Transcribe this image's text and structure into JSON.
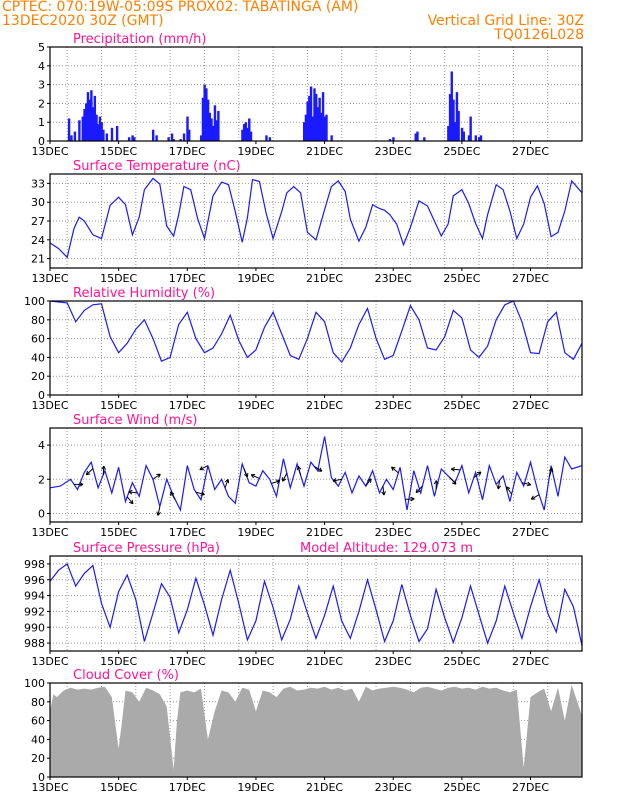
{
  "header": {
    "line1_left": "CPTEC:    070:19W-05:09S   PROX02: TABATINGA (AM)",
    "line2_left": "13DEC2020 30Z (GMT)",
    "line2_right": "Vertical Grid Line: 30Z",
    "line3_right": "TQ0126L028"
  },
  "colors": {
    "header": "#ff7f00",
    "title": "#ff1493",
    "line": "#1a1aff",
    "cloud": "#aaaaaa"
  },
  "chart_data": [
    {
      "type": "bar",
      "title": "Precipitation  (mm/h)",
      "ylim": [
        0,
        5
      ],
      "yticks": [
        "0",
        "1",
        "2",
        "3",
        "4",
        "5"
      ],
      "xticks": [
        "13DEC",
        "15DEC",
        "17DEC",
        "19DEC",
        "21DEC",
        "23DEC",
        "25DEC",
        "27DEC"
      ],
      "x_days": [
        0,
        15.5
      ],
      "x": [
        0.55,
        0.62,
        0.72,
        0.85,
        0.95,
        1.0,
        1.05,
        1.1,
        1.15,
        1.2,
        1.25,
        1.3,
        1.35,
        1.4,
        1.45,
        1.5,
        1.55,
        1.65,
        1.8,
        1.95,
        2.3,
        2.4,
        2.45,
        3.0,
        3.1,
        3.45,
        3.55,
        3.6,
        3.8,
        3.9,
        4.0,
        4.05,
        4.4,
        4.45,
        4.5,
        4.55,
        4.6,
        4.65,
        4.7,
        4.75,
        4.8,
        4.85,
        4.9,
        5.6,
        5.65,
        5.7,
        5.75,
        5.8,
        5.85,
        6.3,
        6.4,
        7.4,
        7.45,
        7.5,
        7.55,
        7.6,
        7.65,
        7.7,
        7.75,
        7.8,
        7.85,
        7.9,
        7.95,
        8.0,
        8.05,
        8.2,
        9.9,
        10.0,
        10.65,
        10.7,
        10.9,
        11.6,
        11.65,
        11.7,
        11.75,
        11.8,
        11.85,
        11.9,
        12.0,
        12.05,
        12.2,
        12.25,
        12.4,
        12.5,
        12.55
      ],
      "values": [
        1.2,
        0.3,
        0.5,
        1.1,
        1.3,
        1.7,
        2.0,
        2.6,
        2.2,
        2.7,
        1.8,
        2.4,
        1.4,
        0.9,
        1.3,
        1.0,
        0.6,
        0.4,
        0.7,
        0.8,
        0.2,
        0.3,
        0.2,
        0.6,
        0.3,
        0.2,
        0.4,
        0.1,
        0.1,
        0.4,
        1.3,
        0.6,
        0.3,
        2.3,
        3.0,
        2.8,
        2.2,
        1.5,
        1.2,
        0.8,
        1.9,
        1.1,
        1.6,
        0.6,
        0.9,
        1.0,
        0.7,
        1.2,
        0.5,
        0.3,
        0.2,
        1.0,
        1.4,
        2.1,
        2.4,
        2.9,
        1.3,
        2.8,
        2.5,
        1.8,
        2.3,
        1.5,
        2.6,
        1.3,
        1.4,
        0.3,
        0.1,
        0.2,
        0.4,
        0.5,
        0.2,
        0.8,
        2.5,
        3.7,
        2.2,
        1.0,
        2.6,
        1.6,
        0.7,
        0.5,
        0.3,
        1.3,
        0.3,
        0.2,
        0.3
      ]
    },
    {
      "type": "line",
      "title": "Surface Temperature (nC)",
      "ylim": [
        19.5,
        34.5
      ],
      "yticks": [
        "21",
        "24",
        "27",
        "30",
        "33"
      ],
      "xticks": [
        "13DEC",
        "15DEC",
        "17DEC",
        "19DEC",
        "21DEC",
        "23DEC",
        "25DEC",
        "27DEC"
      ],
      "x_days": [
        0,
        15.5
      ],
      "x": [
        0,
        0.25,
        0.5,
        0.7,
        0.85,
        1.0,
        1.25,
        1.5,
        1.75,
        2.0,
        2.2,
        2.4,
        2.6,
        2.75,
        3.0,
        3.2,
        3.4,
        3.6,
        3.75,
        3.9,
        4.1,
        4.3,
        4.5,
        4.75,
        5.0,
        5.2,
        5.4,
        5.6,
        5.75,
        5.9,
        6.1,
        6.3,
        6.5,
        6.75,
        6.9,
        7.1,
        7.3,
        7.5,
        7.75,
        8.0,
        8.2,
        8.4,
        8.6,
        8.75,
        9.0,
        9.2,
        9.4,
        9.6,
        9.75,
        9.9,
        10.1,
        10.3,
        10.5,
        10.75,
        11.0,
        11.2,
        11.4,
        11.6,
        11.75,
        12.0,
        12.2,
        12.4,
        12.6,
        12.75,
        13.0,
        13.2,
        13.4,
        13.6,
        13.8,
        14.0,
        14.2,
        14.4,
        14.6,
        14.8,
        15.0,
        15.2,
        15.5
      ],
      "values": [
        23.5,
        22.6,
        21.2,
        25.8,
        27.6,
        27.0,
        24.8,
        24.2,
        29.5,
        30.8,
        29.6,
        24.8,
        27.6,
        32.0,
        33.8,
        32.9,
        26.2,
        24.6,
        28.0,
        32.5,
        32.0,
        27.4,
        24.2,
        31.0,
        33.2,
        32.8,
        28.5,
        23.6,
        27.5,
        33.6,
        33.3,
        28.2,
        24.2,
        28.5,
        31.5,
        32.5,
        31.5,
        25.2,
        24.0,
        28.8,
        32.5,
        33.4,
        31.7,
        27.3,
        23.8,
        26.0,
        29.6,
        29.0,
        28.7,
        28.0,
        26.5,
        23.2,
        26.0,
        30.2,
        29.4,
        27.0,
        24.6,
        26.5,
        31.0,
        32.0,
        29.8,
        26.6,
        24.2,
        28.0,
        32.8,
        32.0,
        28.6,
        24.2,
        26.5,
        30.8,
        32.6,
        29.8,
        24.5,
        25.2,
        28.6,
        33.4,
        31.5
      ]
    },
    {
      "type": "line",
      "title": "Relative Humidity (%)",
      "ylim": [
        0,
        100
      ],
      "yticks": [
        "0",
        "20",
        "40",
        "60",
        "80",
        "100"
      ],
      "xticks": [
        "13DEC",
        "15DEC",
        "17DEC",
        "19DEC",
        "21DEC",
        "23DEC",
        "25DEC",
        "27DEC"
      ],
      "x_days": [
        0,
        15.5
      ],
      "x": [
        0,
        0.5,
        0.75,
        1.0,
        1.25,
        1.5,
        1.75,
        2.0,
        2.25,
        2.5,
        2.75,
        3.0,
        3.25,
        3.5,
        3.75,
        4.0,
        4.25,
        4.5,
        4.75,
        5.0,
        5.25,
        5.5,
        5.75,
        6.0,
        6.25,
        6.5,
        6.75,
        7.0,
        7.25,
        7.5,
        7.75,
        8.0,
        8.25,
        8.5,
        8.75,
        9.0,
        9.25,
        9.5,
        9.75,
        10.0,
        10.25,
        10.5,
        10.75,
        11.0,
        11.25,
        11.5,
        11.75,
        12.0,
        12.25,
        12.5,
        12.75,
        13.0,
        13.25,
        13.5,
        13.75,
        14.0,
        14.25,
        14.5,
        14.75,
        15.0,
        15.25,
        15.5
      ],
      "values": [
        100,
        98,
        78,
        90,
        96,
        97,
        62,
        45,
        55,
        70,
        80,
        60,
        36,
        40,
        75,
        88,
        60,
        45,
        50,
        65,
        85,
        58,
        40,
        48,
        72,
        88,
        65,
        42,
        38,
        60,
        88,
        78,
        45,
        35,
        50,
        75,
        92,
        60,
        38,
        42,
        68,
        95,
        80,
        50,
        48,
        62,
        90,
        82,
        48,
        40,
        52,
        80,
        96,
        100,
        78,
        45,
        44,
        78,
        88,
        45,
        38,
        55
      ]
    },
    {
      "type": "line",
      "title": "Surface Wind (m/s)",
      "ylim": [
        -0.5,
        5
      ],
      "yticks": [
        "0",
        "2",
        "4"
      ],
      "xticks": [
        "13DEC",
        "15DEC",
        "17DEC",
        "19DEC",
        "21DEC",
        "23DEC",
        "25DEC",
        "27DEC"
      ],
      "x_days": [
        0,
        15.5
      ],
      "x": [
        0,
        0.3,
        0.6,
        0.8,
        1.0,
        1.2,
        1.4,
        1.6,
        1.8,
        2.0,
        2.2,
        2.4,
        2.6,
        2.8,
        3.0,
        3.2,
        3.4,
        3.6,
        3.8,
        4.0,
        4.2,
        4.4,
        4.6,
        4.8,
        5.0,
        5.2,
        5.4,
        5.6,
        5.8,
        6.0,
        6.2,
        6.4,
        6.6,
        6.8,
        7.0,
        7.2,
        7.4,
        7.6,
        7.8,
        8.0,
        8.2,
        8.4,
        8.6,
        8.8,
        9.0,
        9.2,
        9.4,
        9.6,
        9.8,
        10.0,
        10.2,
        10.4,
        10.6,
        10.8,
        11.0,
        11.2,
        11.4,
        11.6,
        11.8,
        12.0,
        12.2,
        12.4,
        12.6,
        12.8,
        13.0,
        13.2,
        13.4,
        13.6,
        13.8,
        14.0,
        14.2,
        14.4,
        14.6,
        14.8,
        15.0,
        15.2,
        15.5
      ],
      "values": [
        1.5,
        1.6,
        2.0,
        1.4,
        2.4,
        3.0,
        1.5,
        2.5,
        1.2,
        2.7,
        0.7,
        1.8,
        1.0,
        2.8,
        2.0,
        0.4,
        2.0,
        1.0,
        0.2,
        2.8,
        1.4,
        0.8,
        2.8,
        1.4,
        2.0,
        1.0,
        0.6,
        2.9,
        1.8,
        1.6,
        2.5,
        2.0,
        1.0,
        3.2,
        1.5,
        2.9,
        1.6,
        3.0,
        2.5,
        4.5,
        2.1,
        1.6,
        2.4,
        1.2,
        2.2,
        1.6,
        2.5,
        1.2,
        2.0,
        1.4,
        2.7,
        0.2,
        2.5,
        1.2,
        2.8,
        1.0,
        2.6,
        2.2,
        1.8,
        2.8,
        1.2,
        2.4,
        0.8,
        2.8,
        1.7,
        2.2,
        0.7,
        2.4,
        1.6,
        3.0,
        1.4,
        0.2,
        2.8,
        1.0,
        3.3,
        2.6,
        2.8
      ],
      "arrows_x": [
        0.7,
        1.25,
        1.55,
        2.25,
        2.55,
        3.0,
        3.2,
        3.65,
        4.25,
        4.6,
        5.1,
        5.65,
        6.1,
        6.45,
        6.9,
        7.3,
        7.7,
        8.5,
        9.2,
        9.7,
        10.15,
        10.35,
        10.85,
        11.25,
        11.65,
        11.95,
        12.35,
        13.1,
        13.45,
        13.75,
        14.25,
        14.55
      ]
    },
    {
      "type": "line",
      "title": "Surface Pressure (hPa)",
      "subtitle": "Model Altitude: 129.073  m",
      "ylim": [
        987,
        999
      ],
      "yticks": [
        "988",
        "990",
        "992",
        "994",
        "996",
        "998"
      ],
      "xticks": [
        "13DEC",
        "15DEC",
        "17DEC",
        "19DEC",
        "21DEC",
        "23DEC",
        "25DEC",
        "27DEC"
      ],
      "x_days": [
        0,
        15.5
      ],
      "x": [
        0,
        0.25,
        0.5,
        0.75,
        1.0,
        1.25,
        1.5,
        1.75,
        2.0,
        2.25,
        2.5,
        2.75,
        3.0,
        3.25,
        3.5,
        3.75,
        4.0,
        4.25,
        4.5,
        4.75,
        5.0,
        5.25,
        5.5,
        5.75,
        6.0,
        6.25,
        6.5,
        6.75,
        7.0,
        7.25,
        7.5,
        7.75,
        8.0,
        8.25,
        8.5,
        8.75,
        9.0,
        9.25,
        9.5,
        9.75,
        10.0,
        10.25,
        10.5,
        10.75,
        11.0,
        11.25,
        11.5,
        11.75,
        12.0,
        12.25,
        12.5,
        12.75,
        13.0,
        13.25,
        13.5,
        13.75,
        14.0,
        14.25,
        14.5,
        14.75,
        15.0,
        15.25,
        15.5
      ],
      "values": [
        995.8,
        997.2,
        998.0,
        995.2,
        996.8,
        997.8,
        993.0,
        990.0,
        994.5,
        996.6,
        993.5,
        988.2,
        991.8,
        995.5,
        993.8,
        989.3,
        992.2,
        996.2,
        992.8,
        989.0,
        993.5,
        997.2,
        993.0,
        988.4,
        990.8,
        995.8,
        992.5,
        988.4,
        991.0,
        995.2,
        991.8,
        988.6,
        991.5,
        995.2,
        990.8,
        988.6,
        992.0,
        996.0,
        992.2,
        988.2,
        990.8,
        995.4,
        991.5,
        988.2,
        989.8,
        994.8,
        991.2,
        988.1,
        991.2,
        995.2,
        991.6,
        988.0,
        990.8,
        995.2,
        991.8,
        988.6,
        992.6,
        996.0,
        991.8,
        989.4,
        994.8,
        992.6,
        987.7
      ]
    },
    {
      "type": "area",
      "title": "Cloud Cover (%)",
      "ylim": [
        0,
        100
      ],
      "yticks": [
        "0",
        "20",
        "40",
        "60",
        "80",
        "100"
      ],
      "xticks": [
        "13DEC",
        "15DEC",
        "17DEC",
        "19DEC",
        "21DEC",
        "23DEC",
        "25DEC",
        "27DEC"
      ],
      "x_days": [
        0,
        15.5
      ],
      "x": [
        0,
        0.1,
        0.2,
        0.4,
        0.6,
        0.8,
        1.0,
        1.2,
        1.4,
        1.6,
        1.8,
        2.0,
        2.1,
        2.2,
        2.4,
        2.6,
        2.8,
        3.0,
        3.2,
        3.4,
        3.6,
        3.7,
        3.8,
        4.0,
        4.2,
        4.4,
        4.6,
        4.8,
        5.0,
        5.2,
        5.4,
        5.6,
        5.8,
        6.0,
        6.2,
        6.4,
        6.6,
        6.8,
        7.0,
        7.2,
        7.4,
        7.6,
        7.8,
        8.0,
        8.2,
        8.4,
        8.6,
        8.8,
        9.0,
        9.2,
        9.4,
        9.6,
        9.8,
        10.0,
        10.2,
        10.4,
        10.6,
        10.8,
        11.0,
        11.2,
        11.4,
        11.6,
        11.8,
        12.0,
        12.2,
        12.4,
        12.6,
        12.8,
        13.0,
        13.2,
        13.4,
        13.6,
        13.8,
        14.0,
        14.2,
        14.4,
        14.6,
        14.8,
        15.0,
        15.2,
        15.5
      ],
      "values": [
        70,
        88,
        85,
        92,
        95,
        93,
        94,
        93,
        95,
        96,
        85,
        30,
        60,
        92,
        90,
        80,
        95,
        92,
        88,
        75,
        8,
        60,
        90,
        92,
        90,
        94,
        40,
        70,
        92,
        90,
        80,
        95,
        93,
        70,
        92,
        90,
        85,
        94,
        96,
        92,
        93,
        95,
        94,
        96,
        93,
        95,
        92,
        94,
        80,
        96,
        92,
        94,
        95,
        96,
        95,
        93,
        90,
        95,
        96,
        94,
        92,
        95,
        96,
        94,
        95,
        93,
        96,
        94,
        95,
        92,
        90,
        93,
        10,
        85,
        90,
        94,
        70,
        95,
        60,
        98,
        65
      ]
    }
  ]
}
